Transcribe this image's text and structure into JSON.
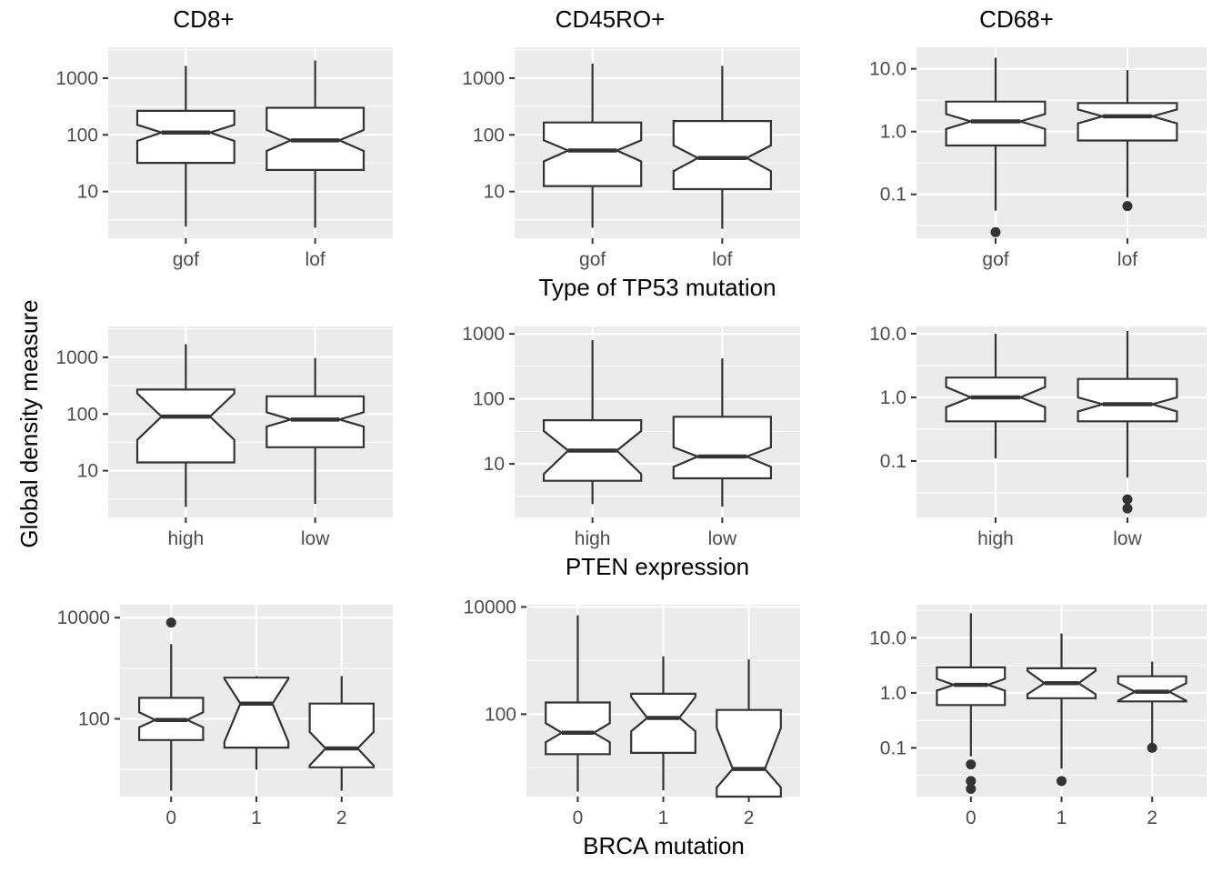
{
  "column_titles": [
    "CD8+",
    "CD45RO+",
    "CD68+"
  ],
  "ylabel": "Global density measure",
  "row_xlabels": [
    "Type of TP53 mutation",
    "PTEN expression",
    "BRCA mutation"
  ],
  "chart_data": [
    {
      "type": "boxplot",
      "notched": true,
      "scale": "log10",
      "column": "CD8+",
      "row_xlabel": "Type of TP53 mutation",
      "categories": [
        "gof",
        "lof"
      ],
      "yticks": [
        10,
        100,
        1000
      ],
      "ytick_labels": [
        "10",
        "100",
        "1000"
      ],
      "ylim": [
        1.5,
        3500
      ],
      "boxes": [
        {
          "category": "gof",
          "whisker_low": 2.4,
          "q1": 32,
          "median": 110,
          "q3": 265,
          "whisker_high": 1650,
          "notch_low": 78,
          "notch_high": 150,
          "outliers": []
        },
        {
          "category": "lof",
          "whisker_low": 2.3,
          "q1": 24,
          "median": 80,
          "q3": 300,
          "whisker_high": 2050,
          "notch_low": 52,
          "notch_high": 122,
          "outliers": []
        }
      ]
    },
    {
      "type": "boxplot",
      "notched": true,
      "scale": "log10",
      "column": "CD45RO+",
      "row_xlabel": "Type of TP53 mutation",
      "categories": [
        "gof",
        "lof"
      ],
      "yticks": [
        10,
        100,
        1000
      ],
      "ytick_labels": [
        "10",
        "100",
        "1000"
      ],
      "ylim": [
        1.5,
        3500
      ],
      "boxes": [
        {
          "category": "gof",
          "whisker_low": 2.3,
          "q1": 12.5,
          "median": 53,
          "q3": 165,
          "whisker_high": 1800,
          "notch_low": 34,
          "notch_high": 80,
          "outliers": []
        },
        {
          "category": "lof",
          "whisker_low": 2.2,
          "q1": 11,
          "median": 39,
          "q3": 175,
          "whisker_high": 1650,
          "notch_low": 23,
          "notch_high": 65,
          "outliers": []
        }
      ]
    },
    {
      "type": "boxplot",
      "notched": true,
      "scale": "log10",
      "column": "CD68+",
      "row_xlabel": "Type of TP53 mutation",
      "categories": [
        "gof",
        "lof"
      ],
      "yticks": [
        0.1,
        1,
        10
      ],
      "ytick_labels": [
        "0.1",
        "1.0",
        "10.0"
      ],
      "ylim": [
        0.02,
        22
      ],
      "boxes": [
        {
          "category": "gof",
          "whisker_low": 0.055,
          "q1": 0.6,
          "median": 1.45,
          "q3": 3.0,
          "whisker_high": 15,
          "notch_low": 1.1,
          "notch_high": 1.9,
          "outliers": [
            0.025
          ]
        },
        {
          "category": "lof",
          "whisker_low": 0.09,
          "q1": 0.72,
          "median": 1.75,
          "q3": 2.85,
          "whisker_high": 9.5,
          "notch_low": 1.35,
          "notch_high": 2.25,
          "outliers": [
            0.065
          ]
        }
      ]
    },
    {
      "type": "boxplot",
      "notched": true,
      "scale": "log10",
      "column": "CD8+",
      "row_xlabel": "PTEN expression",
      "categories": [
        "high",
        "low"
      ],
      "yticks": [
        10,
        100,
        1000
      ],
      "ytick_labels": [
        "10",
        "100",
        "1000"
      ],
      "ylim": [
        1.5,
        3500
      ],
      "boxes": [
        {
          "category": "high",
          "whisker_low": 2.3,
          "q1": 14,
          "median": 90,
          "q3": 270,
          "whisker_high": 1700,
          "notch_low": 35,
          "notch_high": 230,
          "outliers": []
        },
        {
          "category": "low",
          "whisker_low": 2.6,
          "q1": 26,
          "median": 80,
          "q3": 205,
          "whisker_high": 970,
          "notch_low": 60,
          "notch_high": 107,
          "outliers": []
        }
      ]
    },
    {
      "type": "boxplot",
      "notched": true,
      "scale": "log10",
      "column": "CD45RO+",
      "row_xlabel": "PTEN expression",
      "categories": [
        "high",
        "low"
      ],
      "yticks": [
        10,
        100,
        1000
      ],
      "ytick_labels": [
        "10",
        "100",
        "1000"
      ],
      "ylim": [
        1.5,
        1300
      ],
      "boxes": [
        {
          "category": "high",
          "whisker_low": 2.4,
          "q1": 5.5,
          "median": 16,
          "q3": 47,
          "whisker_high": 800,
          "notch_low": 7,
          "notch_high": 32,
          "outliers": []
        },
        {
          "category": "low",
          "whisker_low": 2.2,
          "q1": 6,
          "median": 13,
          "q3": 53,
          "whisker_high": 420,
          "notch_low": 9,
          "notch_high": 18,
          "outliers": []
        }
      ]
    },
    {
      "type": "boxplot",
      "notched": true,
      "scale": "log10",
      "column": "CD68+",
      "row_xlabel": "PTEN expression",
      "categories": [
        "high",
        "low"
      ],
      "yticks": [
        0.1,
        1,
        10
      ],
      "ytick_labels": [
        "0.1",
        "1.0",
        "10.0"
      ],
      "ylim": [
        0.013,
        13
      ],
      "boxes": [
        {
          "category": "high",
          "whisker_low": 0.11,
          "q1": 0.42,
          "median": 1.0,
          "q3": 2.05,
          "whisker_high": 10,
          "notch_low": 0.7,
          "notch_high": 1.45,
          "outliers": []
        },
        {
          "category": "low",
          "whisker_low": 0.055,
          "q1": 0.42,
          "median": 0.78,
          "q3": 1.95,
          "whisker_high": 11,
          "notch_low": 0.6,
          "notch_high": 1.0,
          "outliers": [
            0.025,
            0.018
          ]
        }
      ]
    },
    {
      "type": "boxplot",
      "notched": true,
      "scale": "log10",
      "column": "CD8+",
      "row_xlabel": "BRCA mutation",
      "categories": [
        "0",
        "1",
        "2"
      ],
      "yticks": [
        100,
        10000
      ],
      "ytick_labels": [
        "100",
        "10000"
      ],
      "ylim": [
        2.9,
        18000
      ],
      "boxes": [
        {
          "category": "0",
          "whisker_low": 3.8,
          "q1": 38,
          "median": 95,
          "q3": 260,
          "whisker_high": 3000,
          "notch_low": 68,
          "notch_high": 135,
          "outliers": [
            8000
          ]
        },
        {
          "category": "1",
          "whisker_low": 10,
          "q1": 27,
          "median": 200,
          "q3": 650,
          "whisker_high": 700,
          "notch_low": 35,
          "notch_high": 620,
          "outliers": []
        },
        {
          "category": "2",
          "whisker_low": 3.8,
          "q1": 11,
          "median": 26,
          "q3": 200,
          "whisker_high": 700,
          "notch_low": 12,
          "notch_high": 55,
          "outliers": []
        }
      ]
    },
    {
      "type": "boxplot",
      "notched": true,
      "scale": "log10",
      "column": "CD45RO+",
      "row_xlabel": "BRCA mutation",
      "categories": [
        "0",
        "1",
        "2"
      ],
      "yticks": [
        100,
        10000
      ],
      "ytick_labels": [
        "100",
        "10000"
      ],
      "ylim": [
        2.9,
        11000
      ],
      "boxes": [
        {
          "category": "0",
          "whisker_low": 3.6,
          "q1": 18,
          "median": 45,
          "q3": 165,
          "whisker_high": 7000,
          "notch_low": 30,
          "notch_high": 68,
          "outliers": []
        },
        {
          "category": "1",
          "whisker_low": 3.8,
          "q1": 19,
          "median": 85,
          "q3": 240,
          "whisker_high": 1200,
          "notch_low": 48,
          "notch_high": 210,
          "outliers": []
        },
        {
          "category": "2",
          "whisker_low": 2.9,
          "q1": 2.9,
          "median": 9.5,
          "q3": 120,
          "whisker_high": 1050,
          "notch_low": 4.3,
          "notch_high": 55,
          "outliers": []
        }
      ]
    },
    {
      "type": "boxplot",
      "notched": true,
      "scale": "log10",
      "column": "CD68+",
      "row_xlabel": "BRCA mutation",
      "categories": [
        "0",
        "1",
        "2"
      ],
      "yticks": [
        0.1,
        1,
        10
      ],
      "ytick_labels": [
        "0.1",
        "1.0",
        "10.0"
      ],
      "ylim": [
        0.013,
        40
      ],
      "boxes": [
        {
          "category": "0",
          "whisker_low": 0.07,
          "q1": 0.6,
          "median": 1.4,
          "q3": 2.9,
          "whisker_high": 28,
          "notch_low": 1.1,
          "notch_high": 1.8,
          "outliers": [
            0.05,
            0.025,
            0.018
          ]
        },
        {
          "category": "1",
          "whisker_low": 0.042,
          "q1": 0.8,
          "median": 1.5,
          "q3": 2.8,
          "whisker_high": 12,
          "notch_low": 0.95,
          "notch_high": 2.5,
          "outliers": [
            0.025
          ]
        },
        {
          "category": "2",
          "whisker_low": 0.1,
          "q1": 0.7,
          "median": 1.05,
          "q3": 2.0,
          "whisker_high": 3.7,
          "notch_low": 0.72,
          "notch_high": 1.5,
          "outliers": [
            0.1
          ]
        }
      ]
    }
  ]
}
